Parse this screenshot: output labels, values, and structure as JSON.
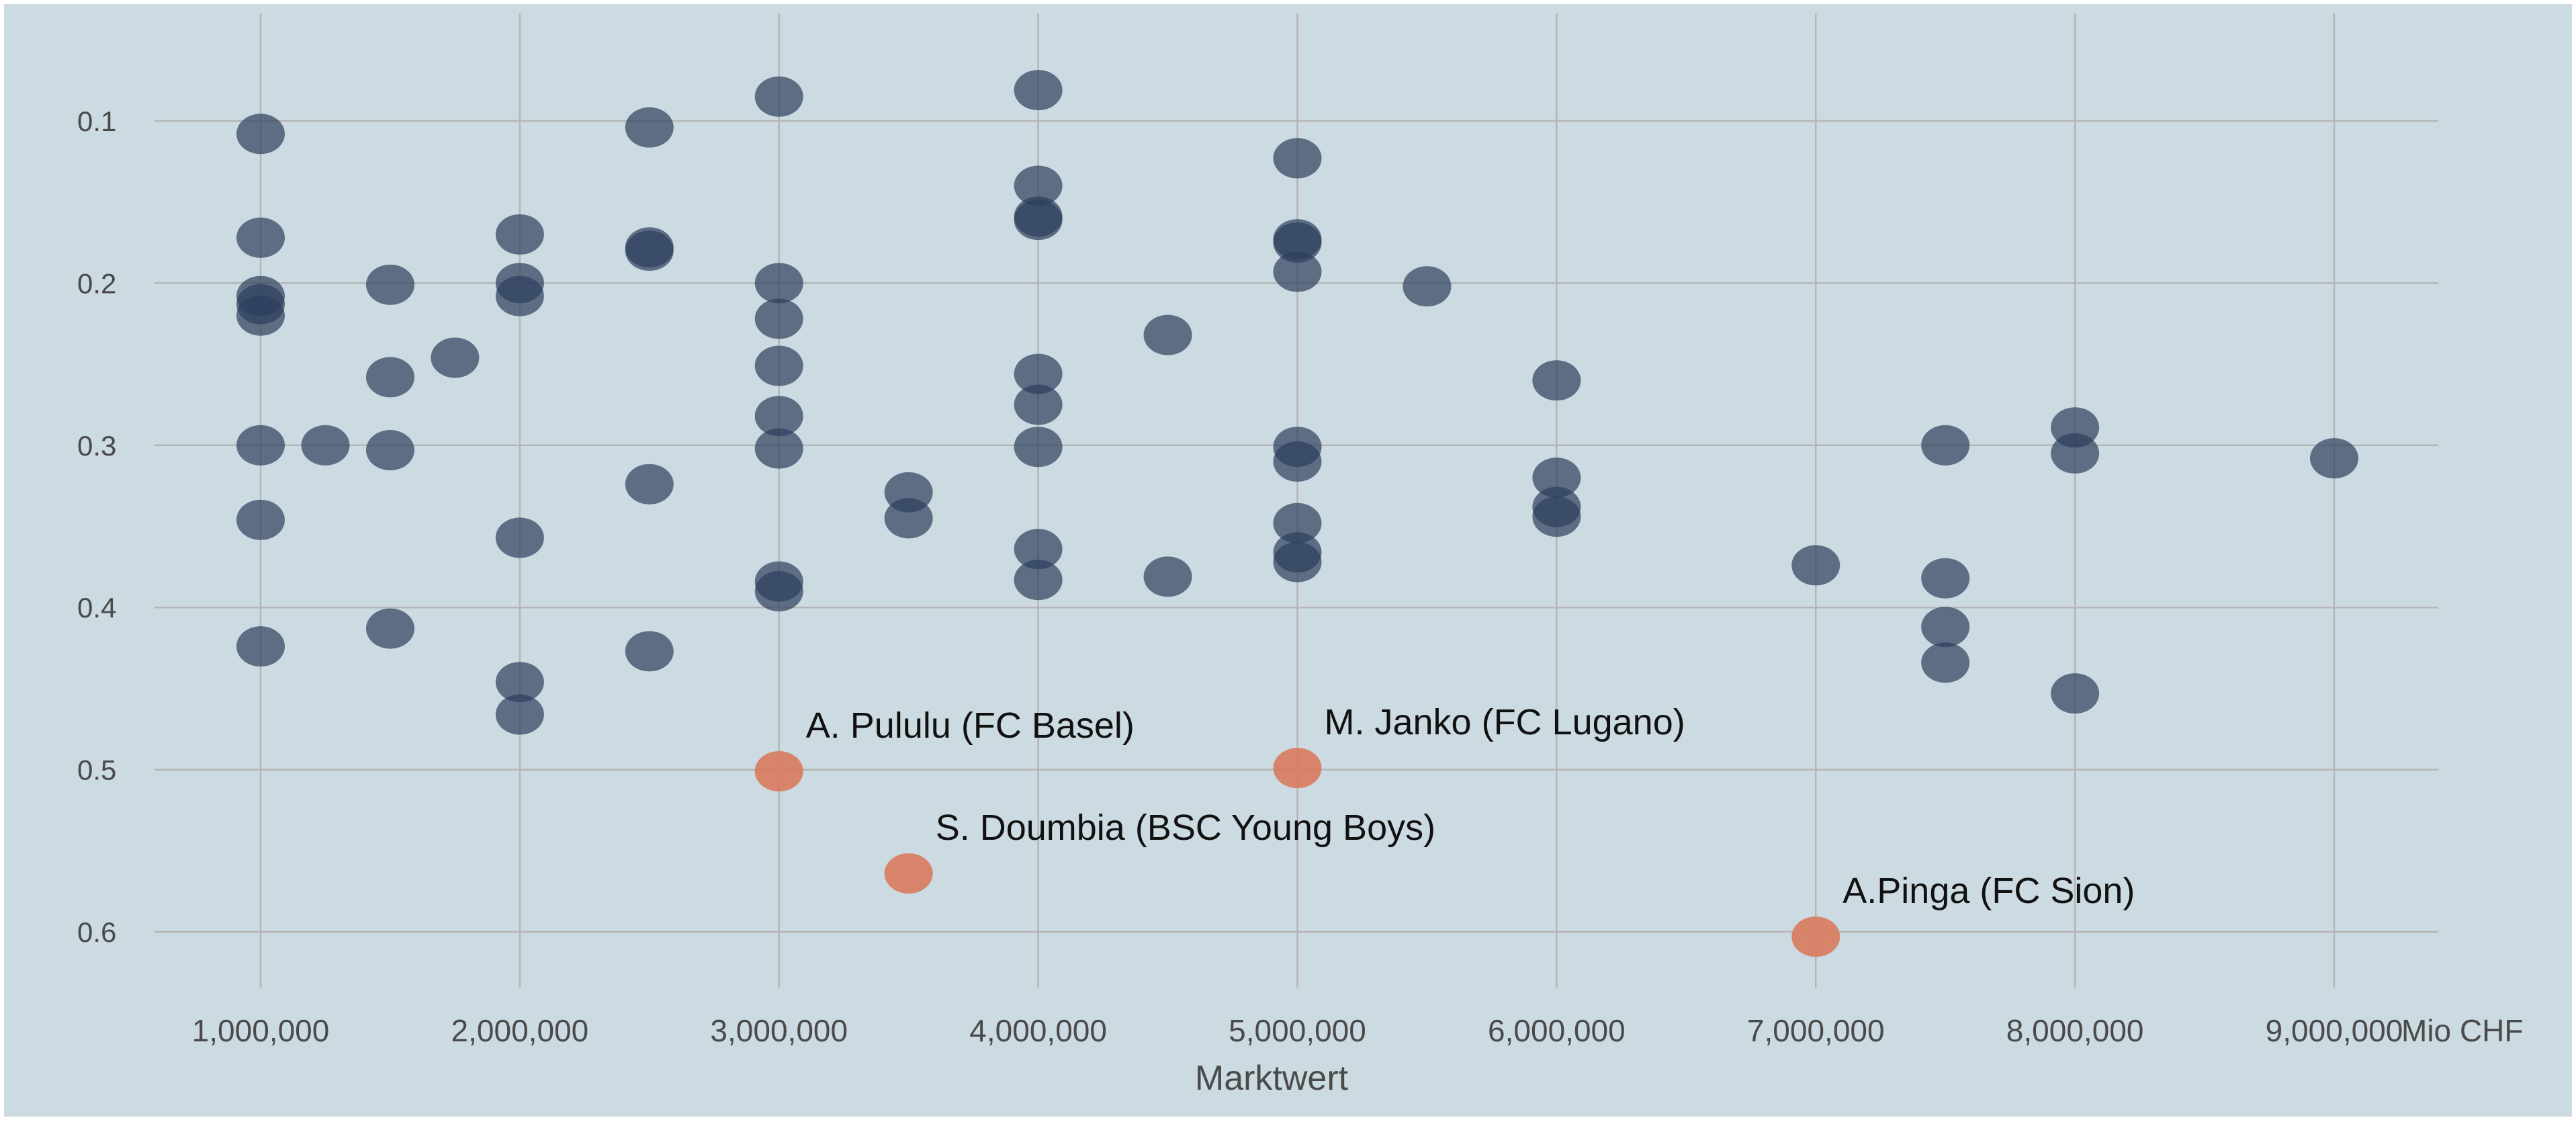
{
  "chart_data": {
    "type": "scatter",
    "title": "",
    "xlabel": "Marktwert",
    "x_unit": "Mio CHF",
    "ylabel": "",
    "xlim": [
      800000,
      9400000
    ],
    "ylim": [
      0.645,
      0.045
    ],
    "y_reversed": true,
    "grid": true,
    "x_ticks": [
      1000000,
      2000000,
      3000000,
      4000000,
      5000000,
      6000000,
      7000000,
      8000000,
      9000000
    ],
    "x_tick_labels": [
      "1,000,000",
      "2,000,000",
      "3,000,000",
      "4,000,000",
      "5,000,000",
      "6,000,000",
      "7,000,000",
      "8,000,000",
      "9,000,000"
    ],
    "y_ticks": [
      0.1,
      0.2,
      0.3,
      0.4,
      0.5,
      0.6
    ],
    "y_tick_labels": [
      "0.1",
      "0.2",
      "0.3",
      "0.4",
      "0.5",
      "0.6"
    ],
    "colors": {
      "background": "#ccdae1",
      "grid": "#b5b5b5",
      "base": "#2e3f5c",
      "highlight": "#d87a5e",
      "text": "#4a4a4a",
      "annotation": "#111111"
    },
    "series": [
      {
        "name": "",
        "color": "#2e3f5c",
        "points": [
          [
            1000000,
            0.108
          ],
          [
            1000000,
            0.172
          ],
          [
            1000000,
            0.208
          ],
          [
            1000000,
            0.213
          ],
          [
            1000000,
            0.22
          ],
          [
            1000000,
            0.3
          ],
          [
            1000000,
            0.346
          ],
          [
            1000000,
            0.424
          ],
          [
            1250000,
            0.3
          ],
          [
            1500000,
            0.201
          ],
          [
            1500000,
            0.258
          ],
          [
            1500000,
            0.303
          ],
          [
            1500000,
            0.413
          ],
          [
            1750000,
            0.246
          ],
          [
            2000000,
            0.17
          ],
          [
            2000000,
            0.2
          ],
          [
            2000000,
            0.208
          ],
          [
            2000000,
            0.357
          ],
          [
            2000000,
            0.446
          ],
          [
            2000000,
            0.466
          ],
          [
            2500000,
            0.104
          ],
          [
            2500000,
            0.178
          ],
          [
            2500000,
            0.18
          ],
          [
            2500000,
            0.324
          ],
          [
            2500000,
            0.427
          ],
          [
            3000000,
            0.085
          ],
          [
            3000000,
            0.2
          ],
          [
            3000000,
            0.222
          ],
          [
            3000000,
            0.251
          ],
          [
            3000000,
            0.282
          ],
          [
            3000000,
            0.302
          ],
          [
            3000000,
            0.384
          ],
          [
            3000000,
            0.39
          ],
          [
            3500000,
            0.329
          ],
          [
            3500000,
            0.345
          ],
          [
            4000000,
            0.081
          ],
          [
            4000000,
            0.14
          ],
          [
            4000000,
            0.159
          ],
          [
            4000000,
            0.161
          ],
          [
            4000000,
            0.256
          ],
          [
            4000000,
            0.275
          ],
          [
            4000000,
            0.301
          ],
          [
            4000000,
            0.364
          ],
          [
            4000000,
            0.383
          ],
          [
            4500000,
            0.232
          ],
          [
            4500000,
            0.381
          ],
          [
            5000000,
            0.123
          ],
          [
            5000000,
            0.173
          ],
          [
            5000000,
            0.175
          ],
          [
            5000000,
            0.193
          ],
          [
            5000000,
            0.301
          ],
          [
            5000000,
            0.31
          ],
          [
            5000000,
            0.348
          ],
          [
            5000000,
            0.366
          ],
          [
            5000000,
            0.372
          ],
          [
            5500000,
            0.202
          ],
          [
            6000000,
            0.26
          ],
          [
            6000000,
            0.32
          ],
          [
            6000000,
            0.338
          ],
          [
            6000000,
            0.344
          ],
          [
            7000000,
            0.374
          ],
          [
            7500000,
            0.3
          ],
          [
            7500000,
            0.382
          ],
          [
            7500000,
            0.412
          ],
          [
            7500000,
            0.434
          ],
          [
            8000000,
            0.289
          ],
          [
            8000000,
            0.305
          ],
          [
            8000000,
            0.453
          ],
          [
            9000000,
            0.308
          ]
        ]
      },
      {
        "name": "",
        "color": "#d87a5e",
        "points": [
          {
            "x": 3000000,
            "y": 0.501,
            "label": "A. Pululu (FC Basel)"
          },
          {
            "x": 5000000,
            "y": 0.499,
            "label": "M. Janko (FC Lugano)"
          },
          {
            "x": 3500000,
            "y": 0.564,
            "label": "S. Doumbia (BSC Young Boys)"
          },
          {
            "x": 7000000,
            "y": 0.603,
            "label": "A.Pinga (FC Sion)"
          }
        ]
      }
    ]
  }
}
